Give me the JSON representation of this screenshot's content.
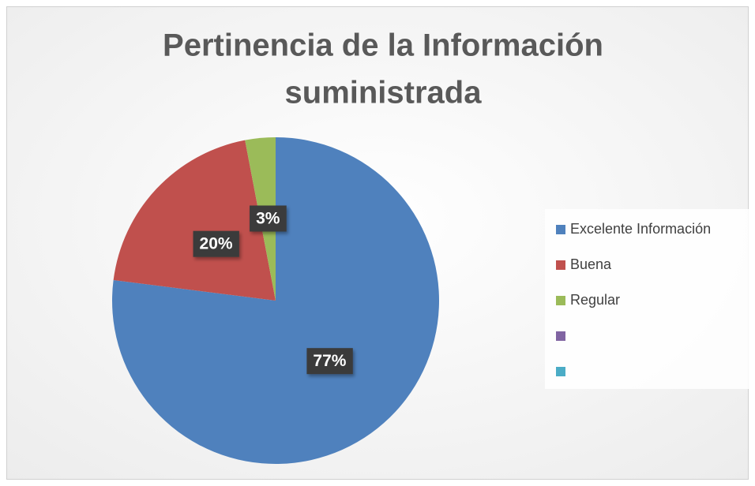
{
  "chart_data": {
    "type": "pie",
    "title": [
      "Pertinencia de la Información",
      "suministrada"
    ],
    "categories": [
      "Excelente Información",
      "Buena",
      "Regular",
      null,
      null
    ],
    "values": [
      77,
      20,
      3,
      0,
      0
    ],
    "value_labels": [
      "77%",
      "20%",
      "3%",
      null,
      null
    ],
    "colors": [
      "#4f81bd",
      "#c0504d",
      "#9bbb59",
      "#8064a2",
      "#4bacc6"
    ],
    "legend": "right"
  }
}
